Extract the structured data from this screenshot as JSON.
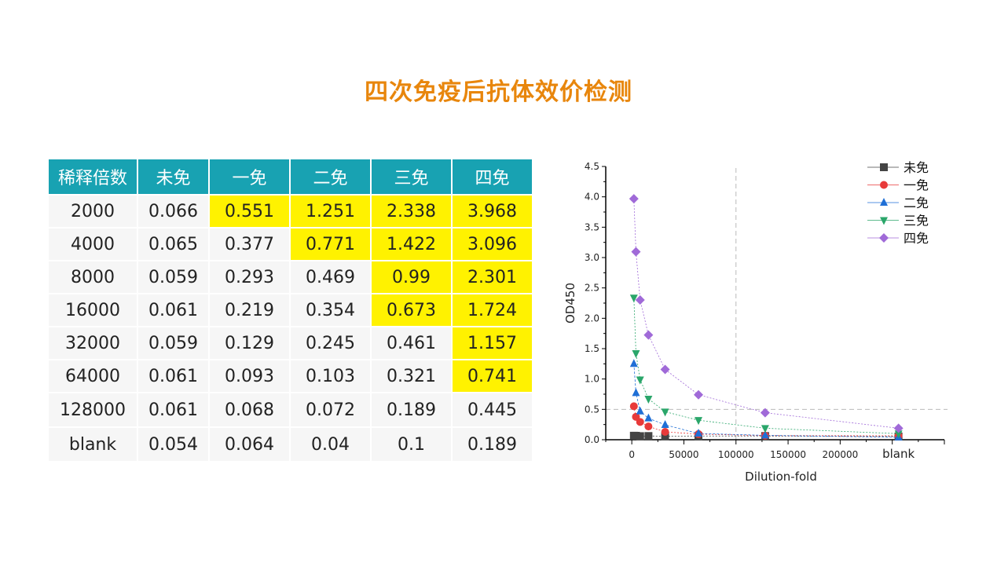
{
  "title": "四次免疫后抗体效价检测",
  "table": {
    "headers": [
      "稀释倍数",
      "未免",
      "一免",
      "二免",
      "三免",
      "四免"
    ],
    "rows": [
      [
        "2000",
        "0.066",
        "0.551",
        "1.251",
        "2.338",
        "3.968"
      ],
      [
        "4000",
        "0.065",
        "0.377",
        "0.771",
        "1.422",
        "3.096"
      ],
      [
        "8000",
        "0.059",
        "0.293",
        "0.469",
        "0.99",
        "2.301"
      ],
      [
        "16000",
        "0.061",
        "0.219",
        "0.354",
        "0.673",
        "1.724"
      ],
      [
        "32000",
        "0.059",
        "0.129",
        "0.245",
        "0.461",
        "1.157"
      ],
      [
        "64000",
        "0.061",
        "0.093",
        "0.103",
        "0.321",
        "0.741"
      ],
      [
        "128000",
        "0.061",
        "0.068",
        "0.072",
        "0.189",
        "0.445"
      ],
      [
        "blank",
        "0.054",
        "0.064",
        "0.04",
        "0.1",
        "0.189"
      ]
    ],
    "highlight": [
      [
        false,
        false,
        true,
        true,
        true,
        true
      ],
      [
        false,
        false,
        false,
        true,
        true,
        true
      ],
      [
        false,
        false,
        false,
        false,
        true,
        true
      ],
      [
        false,
        false,
        false,
        false,
        true,
        true
      ],
      [
        false,
        false,
        false,
        false,
        false,
        true
      ],
      [
        false,
        false,
        false,
        false,
        false,
        true
      ],
      [
        false,
        false,
        false,
        false,
        false,
        false
      ],
      [
        false,
        false,
        false,
        false,
        false,
        false
      ]
    ],
    "highlight_color": "#fff200",
    "header_color": "#18a2b2"
  },
  "chart_data": {
    "type": "line",
    "xlabel": "Dilution-fold",
    "ylabel": "OD450",
    "xlim": [
      -25000,
      300000
    ],
    "ylim": [
      0,
      4.5
    ],
    "xticks": [
      0,
      50000,
      100000,
      150000,
      200000
    ],
    "xtick_labels": [
      "0",
      "50000",
      "100000",
      "150000",
      "200000"
    ],
    "blank_label": "blank",
    "blank_x": 256000,
    "yticks": [
      0.0,
      0.5,
      1.0,
      1.5,
      2.0,
      2.5,
      3.0,
      3.5,
      4.0,
      4.5
    ],
    "ytick_labels": [
      "0.0",
      "0.5",
      "1.0",
      "1.5",
      "2.0",
      "2.5",
      "3.0",
      "3.5",
      "4.0",
      "4.5"
    ],
    "x": [
      2000,
      4000,
      8000,
      16000,
      32000,
      64000,
      128000,
      256000
    ],
    "reference_lines": {
      "x": 100000,
      "y": 0.5
    },
    "legend_position": "top-right",
    "series": [
      {
        "name": "未免",
        "marker": "square",
        "color": "#444444",
        "values": [
          0.066,
          0.065,
          0.059,
          0.061,
          0.059,
          0.061,
          0.061,
          0.054
        ]
      },
      {
        "name": "一免",
        "marker": "circle",
        "color": "#e83a3a",
        "values": [
          0.551,
          0.377,
          0.293,
          0.219,
          0.129,
          0.093,
          0.068,
          0.064
        ]
      },
      {
        "name": "二免",
        "marker": "triangle-up",
        "color": "#1f6fd6",
        "values": [
          1.251,
          0.771,
          0.469,
          0.354,
          0.245,
          0.103,
          0.072,
          0.04
        ]
      },
      {
        "name": "三免",
        "marker": "triangle-down",
        "color": "#2aa66a",
        "values": [
          2.338,
          1.422,
          0.99,
          0.673,
          0.461,
          0.321,
          0.189,
          0.1
        ]
      },
      {
        "name": "四免",
        "marker": "diamond",
        "color": "#a06ad8",
        "values": [
          3.968,
          3.096,
          2.301,
          1.724,
          1.157,
          0.741,
          0.445,
          0.189
        ]
      }
    ]
  }
}
